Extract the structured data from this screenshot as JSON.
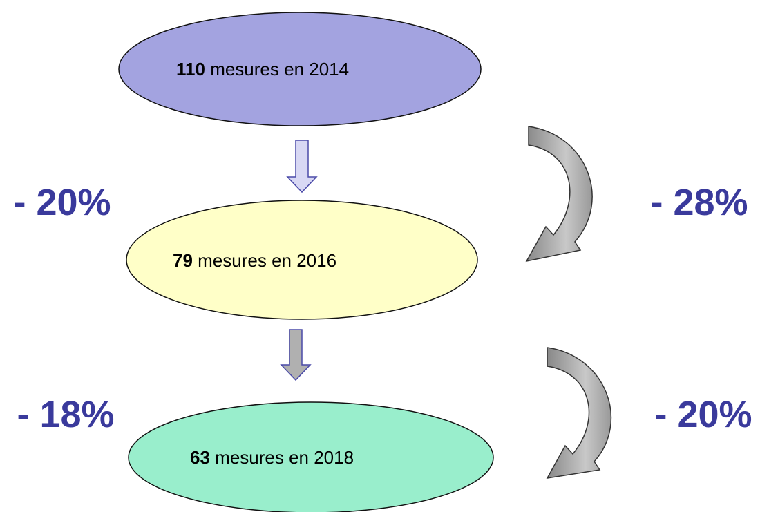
{
  "nodes": [
    {
      "count": "110",
      "label": "mesures en 2014"
    },
    {
      "count": "79",
      "label": "mesures en 2016"
    },
    {
      "count": "63",
      "label": "mesures en 2018"
    }
  ],
  "left_changes": [
    "- 20%",
    "- 18%"
  ],
  "right_changes": [
    "- 28%",
    "- 20%"
  ]
}
